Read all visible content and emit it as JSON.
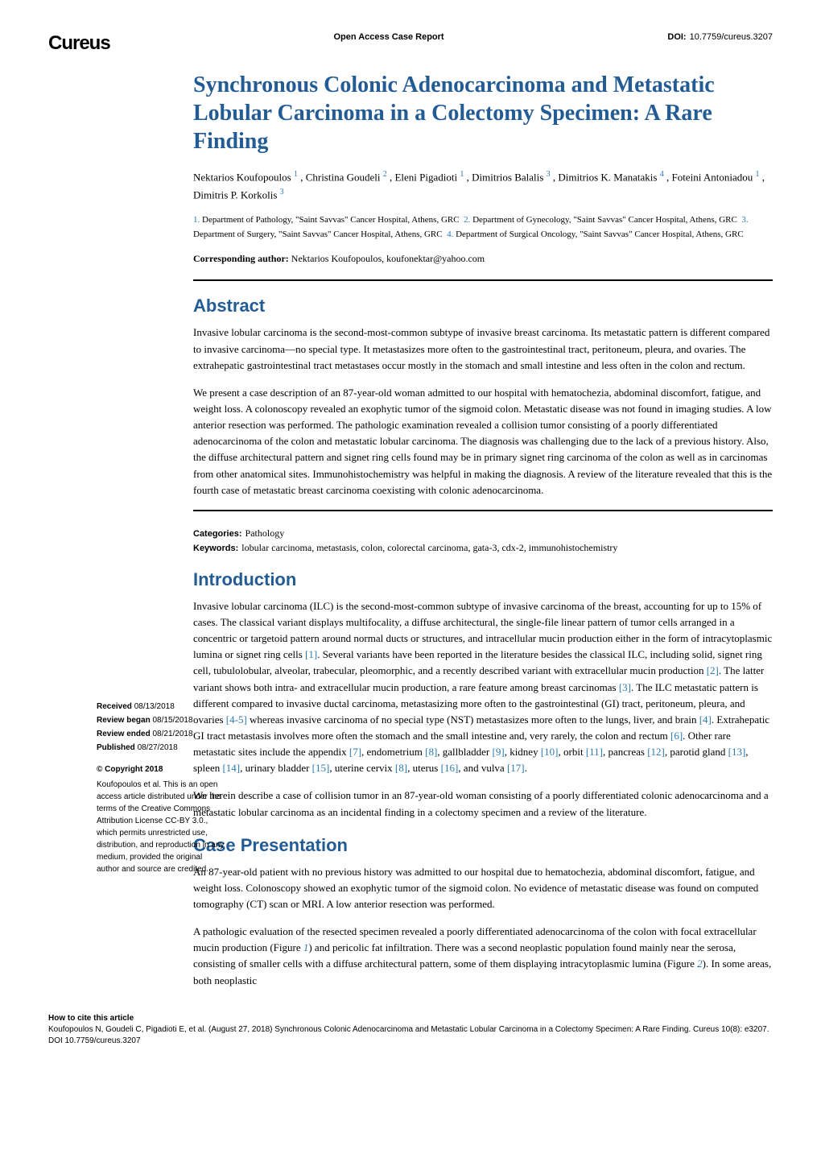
{
  "journal_logo": "Cureus",
  "header_center": "Open Access Case Report",
  "doi_label": "DOI:",
  "doi_value": "10.7759/cureus.3207",
  "title": "Synchronous Colonic Adenocarcinoma and Metastatic Lobular Carcinoma in a Colectomy Specimen: A Rare Finding",
  "authors": {
    "a1": "Nektarios Koufopoulos",
    "s1": "1",
    "a2": "Christina Goudeli",
    "s2": "2",
    "a3": "Eleni Pigadioti",
    "s3": "1",
    "a4": "Dimitrios Balalis",
    "s4": "3",
    "a5": "Dimitrios K. Manatakis",
    "s5": "4",
    "a6": "Foteini Antoniadou",
    "s6": "1",
    "a7": "Dimitris P. Korkolis",
    "s7": "3"
  },
  "affiliations": {
    "n1": "1.",
    "t1": "Department of Pathology, \"Saint Savvas\" Cancer Hospital, Athens, GRC",
    "n2": "2.",
    "t2": "Department of Gynecology, \"Saint Savvas\" Cancer Hospital, Athens, GRC",
    "n3": "3.",
    "t3": "Department of Surgery, \"Saint Savvas\" Cancer Hospital, Athens, GRC",
    "n4": "4.",
    "t4": "Department of Surgical Oncology, \"Saint Savvas\" Cancer Hospital, Athens, GRC"
  },
  "corresponding_label": "Corresponding author:",
  "corresponding_value": "Nektarios Koufopoulos, koufonektar@yahoo.com",
  "abstract_heading": "Abstract",
  "abstract_p1": "Invasive lobular carcinoma is the second-most-common subtype of invasive breast carcinoma. Its metastatic pattern is different compared to invasive carcinoma—no special type. It metastasizes more often to the gastrointestinal tract, peritoneum, pleura, and ovaries. The extrahepatic gastrointestinal tract metastases occur mostly in the stomach and small intestine and less often in the colon and rectum.",
  "abstract_p2": "We present a case description of an 87-year-old woman admitted to our hospital with hematochezia, abdominal discomfort, fatigue, and weight loss. A colonoscopy revealed an exophytic tumor of the sigmoid colon. Metastatic disease was not found in imaging studies. A low anterior resection was performed. The pathologic examination revealed a collision tumor consisting of a poorly differentiated adenocarcinoma of the colon and metastatic lobular carcinoma. The diagnosis was challenging due to the lack of a previous history. Also, the diffuse architectural pattern and signet ring cells found may be in primary signet ring carcinoma of the colon as well as in carcinomas from other anatomical sites. Immunohistochemistry was helpful in making the diagnosis. A review of the literature revealed that this is the fourth case of metastatic breast carcinoma coexisting with colonic adenocarcinoma.",
  "categories_label": "Categories:",
  "categories_value": "Pathology",
  "keywords_label": "Keywords:",
  "keywords_value": "lobular carcinoma, metastasis, colon, colorectal carcinoma, gata-3, cdx-2, immunohistochemistry",
  "intro_heading": "Introduction",
  "intro_p1a": "Invasive lobular carcinoma (ILC) is the second-most-common subtype of invasive carcinoma of the breast, accounting for up to 15% of cases. The classical variant displays multifocality, a diffuse architectural, the single-file linear pattern of tumor cells arranged in a concentric or targetoid pattern around normal ducts or structures, and intracellular mucin production either in the form of intracytoplasmic lumina or signet ring cells ",
  "ref1": "[1]",
  "intro_p1b": ". Several variants have been reported in the literature besides the classical ILC, including solid, signet ring cell, tubulolobular, alveolar, trabecular, pleomorphic, and a recently described variant with extracellular mucin production ",
  "ref2": "[2]",
  "intro_p1c": ". The latter variant shows both intra- and extracellular mucin production, a rare feature among breast carcinomas ",
  "ref3": "[3]",
  "intro_p1d": ". The ILC metastatic pattern is different compared to invasive ductal carcinoma, metastasizing more often to the gastrointestinal (GI) tract, peritoneum, pleura, and ovaries ",
  "ref4_5": "[4-5]",
  "intro_p1e": " whereas invasive carcinoma of no special type (NST) metastasizes more often to the lungs, liver, and brain ",
  "ref4": "[4]",
  "intro_p1f": ". Extrahepatic GI tract metastasis involves more often the stomach and the small intestine and, very rarely, the colon and rectum ",
  "ref6": "[6]",
  "intro_p1g": ". Other rare metastatic sites include the appendix ",
  "ref7": "[7]",
  "intro_p1h": ", endometrium ",
  "ref8": "[8]",
  "intro_p1i": ", gallbladder ",
  "ref9": "[9]",
  "intro_p1j": ", kidney ",
  "ref10": "[10]",
  "intro_p1k": ", orbit ",
  "ref11": "[11]",
  "intro_p1l": ", pancreas ",
  "ref12": "[12]",
  "intro_p1m": ", parotid gland ",
  "ref13": "[13]",
  "intro_p1n": ", spleen ",
  "ref14": "[14]",
  "intro_p1o": ", urinary bladder ",
  "ref15": "[15]",
  "intro_p1p": ", uterine cervix ",
  "ref8b": "[8]",
  "intro_p1q": ", uterus ",
  "ref16": "[16]",
  "intro_p1r": ", and vulva ",
  "ref17": "[17]",
  "intro_p1s": ".",
  "intro_p2": "We herein describe a case of collision tumor in an 87-year-old woman consisting of a poorly differentiated colonic adenocarcinoma and a metastatic lobular carcinoma as an incidental finding in a colectomy specimen and a review of the literature.",
  "case_heading": "Case Presentation",
  "case_p1": "An 87-year-old patient with no previous history was admitted to our hospital due to hematochezia, abdominal discomfort, fatigue, and weight loss. Colonoscopy showed an exophytic tumor of the sigmoid colon. No evidence of metastatic disease was found on computed tomography (CT) scan or MRI. A low anterior resection was performed.",
  "case_p2a": "A pathologic evaluation of the resected specimen revealed a poorly differentiated adenocarcinoma of the colon with focal extracellular mucin production (Figure ",
  "fig1": "1",
  "case_p2b": ") and pericolic fat infiltration. There was a second neoplastic population found mainly near the serosa, consisting of smaller cells with a diffuse architectural pattern, some of them displaying intracytoplasmic lumina (Figure ",
  "fig2": "2",
  "case_p2c": "). In some areas, both neoplastic",
  "sidebar": {
    "received_label": "Received",
    "received_date": "08/13/2018",
    "review_began_label": "Review began",
    "review_began_date": "08/15/2018",
    "review_ended_label": "Review ended",
    "review_ended_date": "08/21/2018",
    "published_label": "Published",
    "published_date": "08/27/2018",
    "copyright_head": "© Copyright 2018",
    "copyright_body": "Koufopoulos et al. This is an open access article distributed under the terms of the Creative Commons Attribution License CC-BY 3.0., which permits unrestricted use, distribution, and reproduction in any medium, provided the original author and source are credited."
  },
  "footer": {
    "cite_label": "How to cite this article",
    "cite_text": "Koufopoulos N, Goudeli C, Pigadioti E, et al. (August 27, 2018) Synchronous Colonic Adenocarcinoma and Metastatic Lobular Carcinoma in a Colectomy Specimen: A Rare Finding. Cureus 10(8): e3207. DOI 10.7759/cureus.3207"
  },
  "colors": {
    "heading_blue": "#235b94",
    "link_blue": "#2a7ab0"
  }
}
